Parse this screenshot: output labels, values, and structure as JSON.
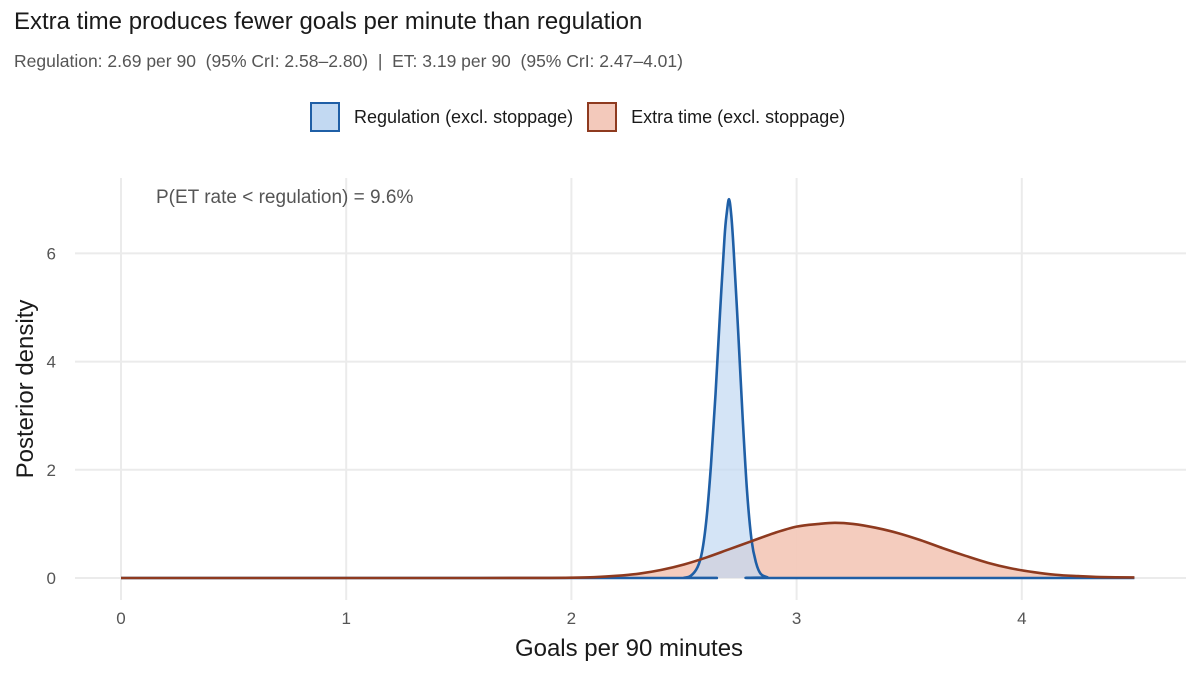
{
  "chart_data": {
    "type": "area",
    "title": "Extra time produces fewer goals per minute than regulation",
    "subtitle": "Regulation: 2.69 per 90  (95% CrI: 2.58–2.80)  |  ET: 3.19 per 90  (95% CrI: 2.47–4.01)",
    "xlabel": "Goals per 90 minutes",
    "ylabel": "Posterior density",
    "xlim": [
      0,
      4.5
    ],
    "ylim": [
      0,
      7
    ],
    "x_ticks": [
      "0",
      "1",
      "2",
      "3",
      "4"
    ],
    "y_ticks": [
      "0",
      "2",
      "4",
      "6"
    ],
    "grid": true,
    "legend_position": "top",
    "annotation": "P(ET rate < regulation) = 9.6%",
    "series": [
      {
        "name": "Regulation (excl. stoppage)",
        "color": "#1f5fa6",
        "fill": "#c2d9f2",
        "points": [
          [
            0,
            0
          ],
          [
            2.45,
            0
          ],
          [
            2.5,
            0.005
          ],
          [
            2.53,
            0.04
          ],
          [
            2.56,
            0.2
          ],
          [
            2.58,
            0.48
          ],
          [
            2.6,
            1.1
          ],
          [
            2.62,
            2.1
          ],
          [
            2.64,
            3.4
          ],
          [
            2.66,
            4.9
          ],
          [
            2.68,
            6.3
          ],
          [
            2.69,
            6.75
          ],
          [
            2.7,
            7.0
          ],
          [
            2.71,
            6.7
          ],
          [
            2.72,
            6.1
          ],
          [
            2.74,
            4.6
          ],
          [
            2.76,
            3.0
          ],
          [
            2.78,
            1.6
          ],
          [
            2.8,
            0.7
          ],
          [
            2.82,
            0.28
          ],
          [
            2.84,
            0.08
          ],
          [
            2.87,
            0.015
          ],
          [
            2.9,
            0
          ],
          [
            4.5,
            0
          ]
        ]
      },
      {
        "name": "Extra time (excl. stoppage)",
        "color": "#8e3a1f",
        "fill": "#f3c9bb",
        "points": [
          [
            0,
            0
          ],
          [
            1.6,
            0
          ],
          [
            1.9,
            0.002
          ],
          [
            2.0,
            0.005
          ],
          [
            2.1,
            0.015
          ],
          [
            2.2,
            0.04
          ],
          [
            2.3,
            0.08
          ],
          [
            2.4,
            0.15
          ],
          [
            2.5,
            0.25
          ],
          [
            2.6,
            0.38
          ],
          [
            2.7,
            0.53
          ],
          [
            2.8,
            0.68
          ],
          [
            2.9,
            0.83
          ],
          [
            3.0,
            0.95
          ],
          [
            3.1,
            1.0
          ],
          [
            3.17,
            1.02
          ],
          [
            3.25,
            1.0
          ],
          [
            3.35,
            0.93
          ],
          [
            3.45,
            0.83
          ],
          [
            3.55,
            0.7
          ],
          [
            3.65,
            0.55
          ],
          [
            3.75,
            0.41
          ],
          [
            3.85,
            0.28
          ],
          [
            3.95,
            0.18
          ],
          [
            4.05,
            0.11
          ],
          [
            4.15,
            0.06
          ],
          [
            4.25,
            0.035
          ],
          [
            4.35,
            0.018
          ],
          [
            4.5,
            0.01
          ]
        ]
      }
    ]
  }
}
